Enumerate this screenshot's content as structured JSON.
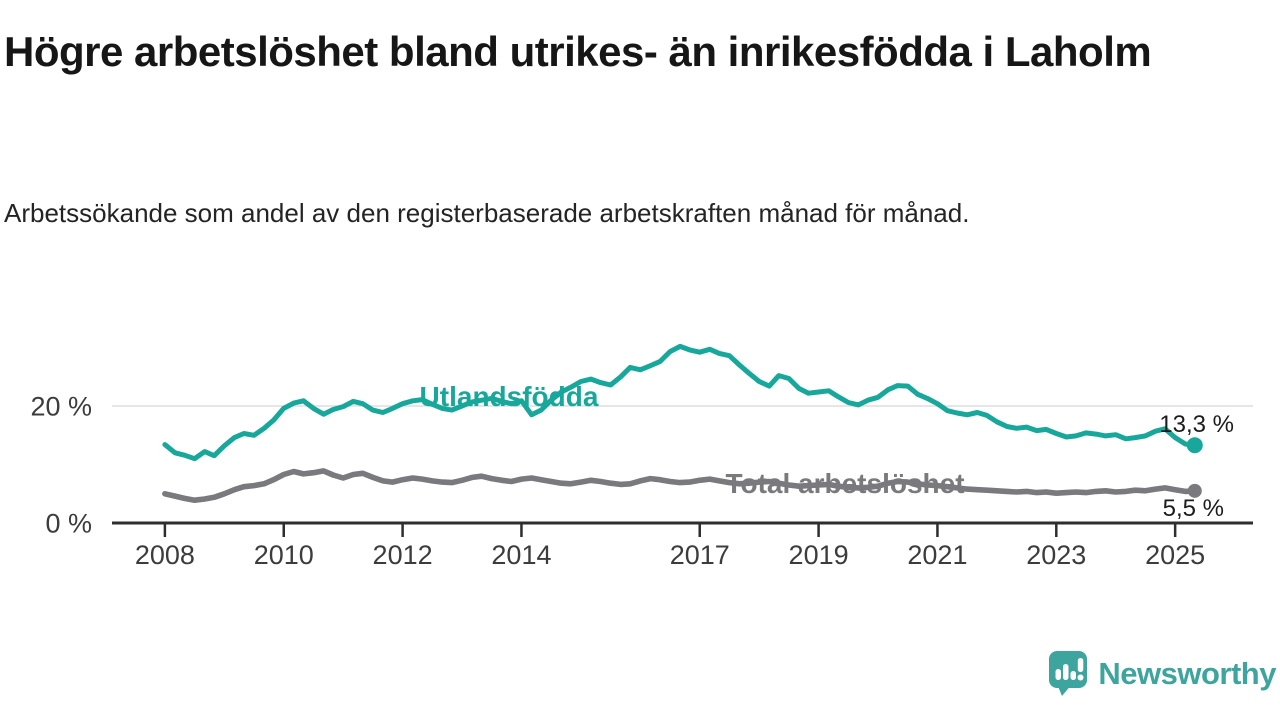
{
  "header": {
    "title": "Högre arbetslöshet bland utrikes- än inrikesfödda i Laholm",
    "subtitle": "Arbetssökande som andel av den registerbaserade arbetskraften månad för månad."
  },
  "chart_data": {
    "type": "line",
    "title": "Högre arbetslöshet bland utrikes- än inrikesfödda i Laholm",
    "x_unit": "year (monthly observations, decimal years)",
    "y_unit": "percent of registered labour force",
    "xlim": [
      2007.11,
      2026.31
    ],
    "ylim": [
      0,
      33
    ],
    "grid": "single horizontal gridline at 20 %",
    "legend_position": "inline labels on lines",
    "x_ticks": [
      {
        "value": 2008,
        "label": "2008"
      },
      {
        "value": 2010,
        "label": "2010"
      },
      {
        "value": 2012,
        "label": "2012"
      },
      {
        "value": 2014,
        "label": "2014"
      },
      {
        "value": 2017,
        "label": "2017"
      },
      {
        "value": 2019,
        "label": "2019"
      },
      {
        "value": 2021,
        "label": "2021"
      },
      {
        "value": 2023,
        "label": "2023"
      },
      {
        "value": 2025,
        "label": "2025"
      }
    ],
    "y_ticks": [
      {
        "value": 0,
        "label": "0 %",
        "style": "axis"
      },
      {
        "value": 20,
        "label": "20 %",
        "style": "grid"
      }
    ],
    "axis_color": "#2e2e2e",
    "grid_color": "#dedede",
    "tick_label_color": "#3c3c3c",
    "series": [
      {
        "name": "Utlandsfödda",
        "color": "#18a79b",
        "end_label": "13,3 %",
        "last_value": 13.3,
        "points": [
          [
            2008.0,
            13.4
          ],
          [
            2008.17,
            12.0
          ],
          [
            2008.33,
            11.6
          ],
          [
            2008.5,
            11.0
          ],
          [
            2008.67,
            12.2
          ],
          [
            2008.83,
            11.5
          ],
          [
            2009.0,
            13.2
          ],
          [
            2009.17,
            14.6
          ],
          [
            2009.33,
            15.3
          ],
          [
            2009.5,
            15.0
          ],
          [
            2009.67,
            16.2
          ],
          [
            2009.83,
            17.6
          ],
          [
            2010.0,
            19.6
          ],
          [
            2010.17,
            20.5
          ],
          [
            2010.33,
            20.9
          ],
          [
            2010.5,
            19.6
          ],
          [
            2010.67,
            18.6
          ],
          [
            2010.83,
            19.4
          ],
          [
            2011.0,
            19.9
          ],
          [
            2011.17,
            20.8
          ],
          [
            2011.33,
            20.4
          ],
          [
            2011.5,
            19.3
          ],
          [
            2011.67,
            18.9
          ],
          [
            2011.83,
            19.6
          ],
          [
            2012.0,
            20.4
          ],
          [
            2012.17,
            20.9
          ],
          [
            2012.33,
            21.1
          ],
          [
            2012.5,
            20.3
          ],
          [
            2012.67,
            19.6
          ],
          [
            2012.83,
            19.3
          ],
          [
            2013.0,
            20.0
          ],
          [
            2013.17,
            20.7
          ],
          [
            2013.33,
            21.0
          ],
          [
            2013.5,
            21.3
          ],
          [
            2013.67,
            20.8
          ],
          [
            2013.83,
            20.4
          ],
          [
            2014.0,
            20.9
          ],
          [
            2014.17,
            18.5
          ],
          [
            2014.33,
            19.3
          ],
          [
            2014.5,
            21.0
          ],
          [
            2014.67,
            22.4
          ],
          [
            2014.83,
            23.2
          ],
          [
            2015.0,
            24.2
          ],
          [
            2015.17,
            24.6
          ],
          [
            2015.33,
            24.0
          ],
          [
            2015.5,
            23.6
          ],
          [
            2015.67,
            25.0
          ],
          [
            2015.83,
            26.6
          ],
          [
            2016.0,
            26.2
          ],
          [
            2016.17,
            26.9
          ],
          [
            2016.33,
            27.6
          ],
          [
            2016.5,
            29.3
          ],
          [
            2016.67,
            30.2
          ],
          [
            2016.83,
            29.6
          ],
          [
            2017.0,
            29.2
          ],
          [
            2017.17,
            29.7
          ],
          [
            2017.33,
            29.0
          ],
          [
            2017.5,
            28.6
          ],
          [
            2017.67,
            27.0
          ],
          [
            2017.83,
            25.6
          ],
          [
            2018.0,
            24.2
          ],
          [
            2018.17,
            23.4
          ],
          [
            2018.33,
            25.2
          ],
          [
            2018.5,
            24.7
          ],
          [
            2018.67,
            23.0
          ],
          [
            2018.83,
            22.2
          ],
          [
            2019.0,
            22.4
          ],
          [
            2019.17,
            22.6
          ],
          [
            2019.33,
            21.6
          ],
          [
            2019.5,
            20.6
          ],
          [
            2019.67,
            20.2
          ],
          [
            2019.83,
            21.0
          ],
          [
            2020.0,
            21.5
          ],
          [
            2020.17,
            22.8
          ],
          [
            2020.33,
            23.5
          ],
          [
            2020.5,
            23.4
          ],
          [
            2020.67,
            22.0
          ],
          [
            2020.83,
            21.3
          ],
          [
            2021.0,
            20.4
          ],
          [
            2021.17,
            19.2
          ],
          [
            2021.33,
            18.8
          ],
          [
            2021.5,
            18.5
          ],
          [
            2021.67,
            18.9
          ],
          [
            2021.83,
            18.4
          ],
          [
            2022.0,
            17.3
          ],
          [
            2022.17,
            16.5
          ],
          [
            2022.33,
            16.2
          ],
          [
            2022.5,
            16.4
          ],
          [
            2022.67,
            15.8
          ],
          [
            2022.83,
            16.0
          ],
          [
            2023.0,
            15.3
          ],
          [
            2023.17,
            14.7
          ],
          [
            2023.33,
            14.9
          ],
          [
            2023.5,
            15.4
          ],
          [
            2023.67,
            15.2
          ],
          [
            2023.83,
            14.9
          ],
          [
            2024.0,
            15.1
          ],
          [
            2024.17,
            14.4
          ],
          [
            2024.33,
            14.6
          ],
          [
            2024.5,
            14.9
          ],
          [
            2024.67,
            15.7
          ],
          [
            2024.83,
            16.1
          ],
          [
            2025.0,
            14.6
          ],
          [
            2025.17,
            13.5
          ],
          [
            2025.33,
            13.3
          ]
        ]
      },
      {
        "name": "Total arbetslöshet",
        "color": "#7a797d",
        "end_label": "5,5 %",
        "last_value": 5.5,
        "points": [
          [
            2008.0,
            5.0
          ],
          [
            2008.17,
            4.6
          ],
          [
            2008.33,
            4.2
          ],
          [
            2008.5,
            3.9
          ],
          [
            2008.67,
            4.1
          ],
          [
            2008.83,
            4.4
          ],
          [
            2009.0,
            5.0
          ],
          [
            2009.17,
            5.7
          ],
          [
            2009.33,
            6.2
          ],
          [
            2009.5,
            6.4
          ],
          [
            2009.67,
            6.7
          ],
          [
            2009.83,
            7.4
          ],
          [
            2010.0,
            8.3
          ],
          [
            2010.17,
            8.8
          ],
          [
            2010.33,
            8.4
          ],
          [
            2010.5,
            8.6
          ],
          [
            2010.67,
            8.9
          ],
          [
            2010.83,
            8.2
          ],
          [
            2011.0,
            7.7
          ],
          [
            2011.17,
            8.3
          ],
          [
            2011.33,
            8.5
          ],
          [
            2011.5,
            7.8
          ],
          [
            2011.67,
            7.2
          ],
          [
            2011.83,
            7.0
          ],
          [
            2012.0,
            7.4
          ],
          [
            2012.17,
            7.7
          ],
          [
            2012.33,
            7.5
          ],
          [
            2012.5,
            7.2
          ],
          [
            2012.67,
            7.0
          ],
          [
            2012.83,
            6.9
          ],
          [
            2013.0,
            7.3
          ],
          [
            2013.17,
            7.8
          ],
          [
            2013.33,
            8.0
          ],
          [
            2013.5,
            7.6
          ],
          [
            2013.67,
            7.3
          ],
          [
            2013.83,
            7.1
          ],
          [
            2014.0,
            7.5
          ],
          [
            2014.17,
            7.7
          ],
          [
            2014.33,
            7.4
          ],
          [
            2014.5,
            7.1
          ],
          [
            2014.67,
            6.8
          ],
          [
            2014.83,
            6.7
          ],
          [
            2015.0,
            7.0
          ],
          [
            2015.17,
            7.3
          ],
          [
            2015.33,
            7.1
          ],
          [
            2015.5,
            6.8
          ],
          [
            2015.67,
            6.6
          ],
          [
            2015.83,
            6.7
          ],
          [
            2016.0,
            7.2
          ],
          [
            2016.17,
            7.6
          ],
          [
            2016.33,
            7.4
          ],
          [
            2016.5,
            7.1
          ],
          [
            2016.67,
            6.9
          ],
          [
            2016.83,
            7.0
          ],
          [
            2017.0,
            7.3
          ],
          [
            2017.17,
            7.5
          ],
          [
            2017.33,
            7.2
          ],
          [
            2017.5,
            6.9
          ],
          [
            2017.67,
            6.7
          ],
          [
            2017.83,
            6.8
          ],
          [
            2018.0,
            7.0
          ],
          [
            2018.17,
            7.1
          ],
          [
            2018.33,
            6.8
          ],
          [
            2018.5,
            6.5
          ],
          [
            2018.67,
            6.3
          ],
          [
            2018.83,
            6.4
          ],
          [
            2019.0,
            6.5
          ],
          [
            2019.17,
            6.6
          ],
          [
            2019.33,
            6.3
          ],
          [
            2019.5,
            6.1
          ],
          [
            2019.67,
            6.0
          ],
          [
            2019.83,
            6.1
          ],
          [
            2020.0,
            6.3
          ],
          [
            2020.17,
            6.8
          ],
          [
            2020.33,
            7.1
          ],
          [
            2020.5,
            7.0
          ],
          [
            2020.67,
            6.7
          ],
          [
            2020.83,
            6.5
          ],
          [
            2021.0,
            6.4
          ],
          [
            2021.17,
            6.2
          ],
          [
            2021.33,
            6.0
          ],
          [
            2021.5,
            5.8
          ],
          [
            2021.67,
            5.7
          ],
          [
            2021.83,
            5.6
          ],
          [
            2022.0,
            5.5
          ],
          [
            2022.17,
            5.4
          ],
          [
            2022.33,
            5.3
          ],
          [
            2022.5,
            5.4
          ],
          [
            2022.67,
            5.2
          ],
          [
            2022.83,
            5.3
          ],
          [
            2023.0,
            5.1
          ],
          [
            2023.17,
            5.2
          ],
          [
            2023.33,
            5.3
          ],
          [
            2023.5,
            5.2
          ],
          [
            2023.67,
            5.4
          ],
          [
            2023.83,
            5.5
          ],
          [
            2024.0,
            5.3
          ],
          [
            2024.17,
            5.4
          ],
          [
            2024.33,
            5.6
          ],
          [
            2024.5,
            5.5
          ],
          [
            2024.67,
            5.8
          ],
          [
            2024.83,
            6.0
          ],
          [
            2025.0,
            5.7
          ],
          [
            2025.17,
            5.4
          ],
          [
            2025.33,
            5.5
          ]
        ]
      }
    ]
  },
  "logo": {
    "text": "Newsworthy",
    "color": "#3da59d",
    "icon": "speech-bubble-bar-chart-icon"
  }
}
